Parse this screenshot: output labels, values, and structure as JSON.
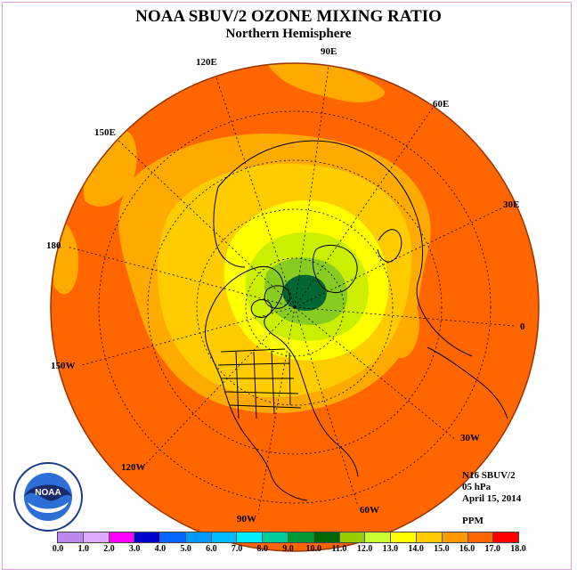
{
  "header": {
    "title": "NOAA SBUV/2 OZONE MIXING RATIO",
    "subtitle": "Northern Hemisphere"
  },
  "map": {
    "projection": "north polar stereographic",
    "lon_labels": [
      "90E",
      "60E",
      "30E",
      "0",
      "30W",
      "60W",
      "90W",
      "120W",
      "150W",
      "180",
      "150E",
      "120E"
    ],
    "colors": {
      "ocean_land_fill": "#ff6600",
      "band_14": "#ffaa00",
      "band_13": "#ffcc00",
      "band_12": "#ffff00",
      "band_11": "#ccee00",
      "band_10_green": "#88cc22",
      "band_9_dark": "#006633",
      "coast": "#000000",
      "rim": "#993300"
    }
  },
  "info": {
    "instrument": "N16 SBUV/2",
    "level": "05 hPa",
    "date": "April 15, 2014",
    "unit": "PPM"
  },
  "logo": {
    "text": "NOAA",
    "ring_text": "NATIONAL OCEANIC AND ATMOSPHERIC ADMINISTRATION · U.S. DEPARTMENT OF COMMERCE"
  },
  "colorbar": {
    "ticks": [
      "0.0",
      "1.0",
      "2.0",
      "3.0",
      "4.0",
      "5.0",
      "6.0",
      "7.0",
      "8.0",
      "9.0",
      "10.0",
      "11.0",
      "12.0",
      "13.0",
      "14.0",
      "15.0",
      "16.0",
      "17.0",
      "18.0"
    ],
    "colors": [
      "#bb88ee",
      "#ddaaff",
      "#ff00ff",
      "#0000cc",
      "#0066ff",
      "#0099ff",
      "#00bbff",
      "#00eeff",
      "#00cc99",
      "#009933",
      "#006600",
      "#99cc00",
      "#ccff33",
      "#ffff00",
      "#ffcc00",
      "#ff9900",
      "#ff6600",
      "#ff0000",
      "#996633"
    ]
  }
}
